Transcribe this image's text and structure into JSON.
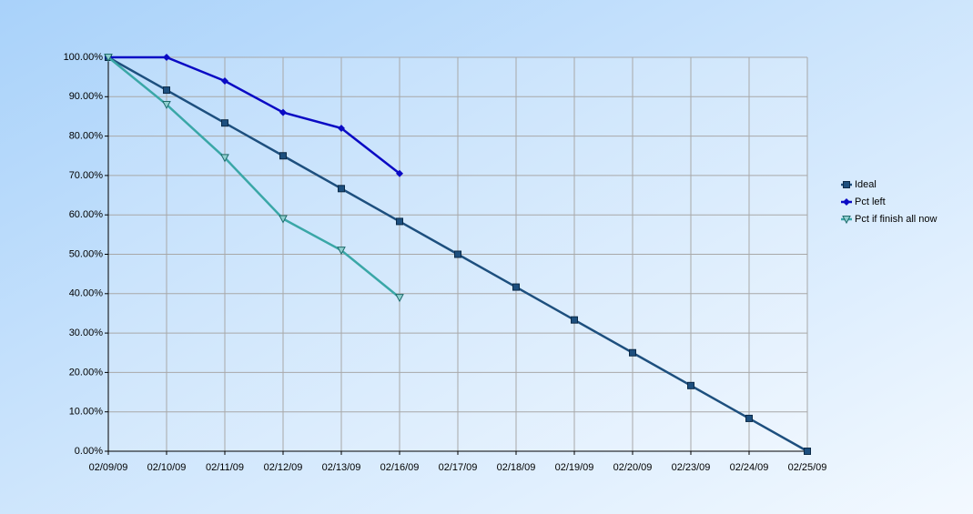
{
  "chart_data": {
    "type": "line",
    "categories": [
      "02/09/09",
      "02/10/09",
      "02/11/09",
      "02/12/09",
      "02/13/09",
      "02/16/09",
      "02/17/09",
      "02/18/09",
      "02/19/09",
      "02/20/09",
      "02/23/09",
      "02/24/09",
      "02/25/09"
    ],
    "series": [
      {
        "name": "Ideal",
        "color": "#1d4f7e",
        "marker": "square",
        "values": [
          100,
          91.67,
          83.33,
          75,
          66.67,
          58.33,
          50,
          41.67,
          33.33,
          25,
          16.67,
          8.33,
          0
        ]
      },
      {
        "name": "Pct left",
        "color": "#0a0ac4",
        "marker": "diamond",
        "values": [
          100,
          100,
          94,
          86,
          82,
          70.5,
          null,
          null,
          null,
          null,
          null,
          null,
          null
        ]
      },
      {
        "name": "Pct if finish all now",
        "color": "#3aa7a7",
        "marker": "triangle-down",
        "values": [
          100,
          88,
          74.5,
          59,
          51,
          39,
          null,
          null,
          null,
          null,
          null,
          null,
          null
        ]
      }
    ],
    "ylim": [
      0,
      100
    ],
    "yticks": [
      {
        "value": 0,
        "label": "0.00%"
      },
      {
        "value": 10,
        "label": "10.00%"
      },
      {
        "value": 20,
        "label": "20.00%"
      },
      {
        "value": 30,
        "label": "30.00%"
      },
      {
        "value": 40,
        "label": "40.00%"
      },
      {
        "value": 50,
        "label": "50.00%"
      },
      {
        "value": 60,
        "label": "60.00%"
      },
      {
        "value": 70,
        "label": "70.00%"
      },
      {
        "value": 80,
        "label": "80.00%"
      },
      {
        "value": 90,
        "label": "90.00%"
      },
      {
        "value": 100,
        "label": "100.00%"
      }
    ],
    "grid": true,
    "legend": "right"
  }
}
